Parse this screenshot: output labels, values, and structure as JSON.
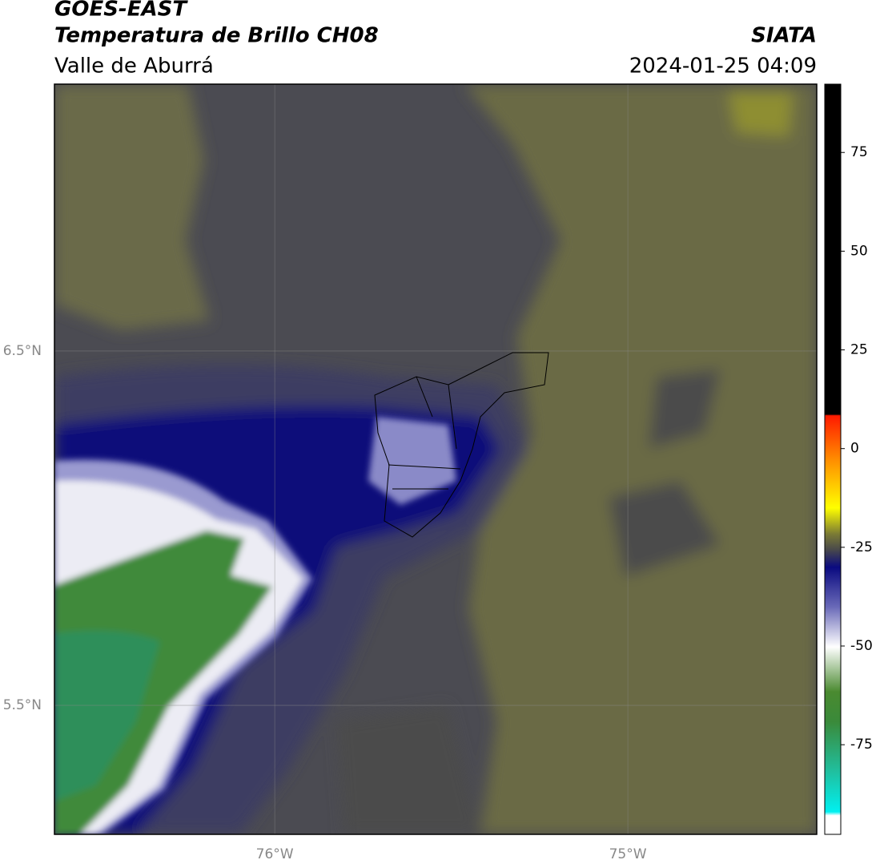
{
  "header": {
    "title": "GOES-EAST",
    "subtitle": "Temperatura de Brillo CH08",
    "region": "Valle de Aburrá",
    "source": "SIATA",
    "datetime": "2024-01-25 04:09"
  },
  "map": {
    "lonlim": [
      -76.624,
      -74.465
    ],
    "latlim": [
      5.136,
      7.253
    ],
    "lonticks": [
      {
        "value": -76,
        "label": "76°W"
      },
      {
        "value": -75,
        "label": "75°W"
      }
    ],
    "latticks": [
      {
        "value": 6.5,
        "label": "6.5°N"
      },
      {
        "value": 5.5,
        "label": "5.5°N"
      }
    ],
    "grid": true
  },
  "colorbar": {
    "lim": [
      -97.7,
      92.3
    ],
    "ticks": [
      75,
      50,
      25,
      0,
      -25,
      -50,
      -75
    ]
  }
}
